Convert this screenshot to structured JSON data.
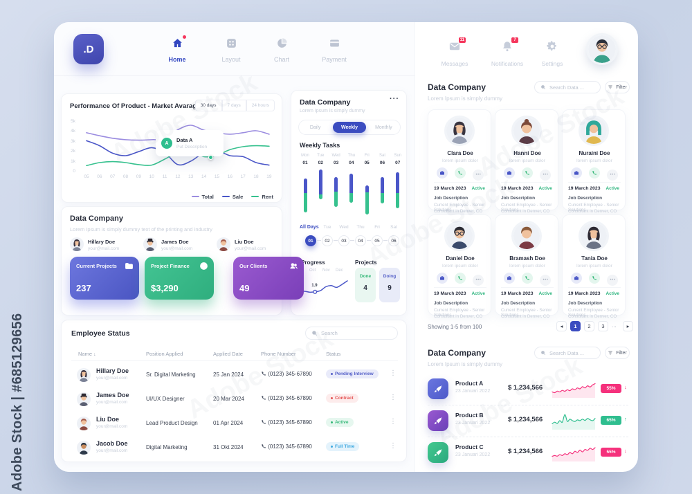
{
  "watermark": {
    "side_text": "Adobe Stock | #685129656",
    "diagonal_text": "Adobe Stock"
  },
  "header": {
    "logo_text": ".D",
    "nav": [
      {
        "label": "Home",
        "icon": "home-icon",
        "active": true,
        "notification_dot": true
      },
      {
        "label": "Layout",
        "icon": "layout-icon",
        "active": false
      },
      {
        "label": "Chart",
        "icon": "chart-icon",
        "active": false
      },
      {
        "label": "Payment",
        "icon": "payment-icon",
        "active": false
      }
    ]
  },
  "performance": {
    "title": "Performance Of Product - Market Avarage",
    "ranges": [
      "30 days",
      "7 days",
      "24 hours"
    ],
    "active_range": "30 days",
    "tooltip": {
      "badge": "A",
      "title": "Data A",
      "subtitle": "Put Description"
    }
  },
  "company": {
    "title": "Data Company",
    "subtitle": "Lorem Ipsum is simply dummy text of the printing and industry",
    "people": [
      {
        "name": "Hillary Doe",
        "email": "your@mail.com",
        "avatar": {
          "hair": "#3a3340",
          "cloth": "#7b8296",
          "style": "long"
        }
      },
      {
        "name": "James Doe",
        "email": "your@mail.com",
        "avatar": {
          "hair": "#2e2a33",
          "cloth": "#5a5f72",
          "style": "hat"
        }
      },
      {
        "name": "Liu Doe",
        "email": "your@mail.com",
        "avatar": {
          "hair": "#a65b4a",
          "cloth": "#8c4a42",
          "style": "short"
        }
      }
    ],
    "stats": [
      {
        "label": "Current Projects",
        "value": "237",
        "icon": "folder-icon",
        "g1": "#6d77de",
        "g2": "#4a55c2"
      },
      {
        "label": "Project Finance",
        "value": "$3,290",
        "icon": "dollar-icon",
        "g1": "#43c493",
        "g2": "#2fae7e"
      },
      {
        "label": "Our Clients",
        "value": "49",
        "icon": "clients-icon",
        "g1": "#9a5ad0",
        "g2": "#7a3fb8"
      }
    ]
  },
  "employees": {
    "title": "Employee Status",
    "search_placeholder": "Search",
    "columns": [
      "Name",
      "Position Applied",
      "Applied Date",
      "Phone Number",
      "Status"
    ],
    "rows": [
      {
        "name": "Hillary Doe",
        "email": "your@mail.com",
        "position": "Sr. Digital Marketing",
        "date": "25 Jan 2024",
        "phone": "(0123) 345-67890",
        "status": "Pending Interview",
        "status_fg": "#5560c8",
        "status_bg": "#e9ebfa",
        "avatar": {
          "hair": "#3a3340",
          "cloth": "#7b8296",
          "style": "long"
        }
      },
      {
        "name": "James Doe",
        "email": "your@mail.com",
        "position": "UI/UX Designer",
        "date": "20 Mar 2024",
        "phone": "(0123) 345-67890",
        "status": "Contract",
        "status_fg": "#e55656",
        "status_bg": "#fdecec",
        "avatar": {
          "hair": "#2e2a33",
          "cloth": "#5a5f72",
          "style": "hat"
        }
      },
      {
        "name": "Liu Doe",
        "email": "your@mail.com",
        "position": "Lead Product Design",
        "date": "01 Apr 2024",
        "phone": "(0123) 345-67890",
        "status": "Active",
        "status_fg": "#35b878",
        "status_bg": "#e6f7ef",
        "avatar": {
          "hair": "#a65b4a",
          "cloth": "#8c4a42",
          "style": "short"
        }
      },
      {
        "name": "Jacob Doe",
        "email": "your@mail.com",
        "position": "Digital Marketing",
        "date": "31 Okt 2024",
        "phone": "(0123) 345-67890",
        "status": "Full Time",
        "status_fg": "#3fa9e0",
        "status_bg": "#e4f3fc",
        "avatar": {
          "hair": "#23303f",
          "cloth": "#2e3a4a",
          "style": "short",
          "skin": "#c98d5f"
        }
      }
    ]
  },
  "middle": {
    "title": "Data Company",
    "menu_label": "···",
    "subtitle": "Lorem Ipsum is simply dummy",
    "tabs": [
      {
        "label": "Daily",
        "active": false
      },
      {
        "label": "Weekly",
        "active": true
      },
      {
        "label": "Monthly",
        "active": false
      }
    ],
    "weekly_title": "Weekly Tasks",
    "day_nav": {
      "label": "All Days",
      "day_names": [
        "Tue",
        "Wed",
        "Thu",
        "Fri",
        "Sat"
      ],
      "buttons": [
        "01",
        "02",
        "03",
        "04",
        "05",
        "06"
      ],
      "active": "01"
    },
    "progress_label": "Progress",
    "projects": {
      "label": "Projects",
      "items": [
        {
          "label": "Done",
          "value": "4",
          "fg": "#35b878",
          "bg": "#e9f7f1"
        },
        {
          "label": "Doing",
          "value": "9",
          "fg": "#5560c8",
          "bg": "#e8ebf8"
        }
      ]
    }
  },
  "right": {
    "topnav": [
      {
        "label": "Messages",
        "icon": "mail-icon",
        "badge": "11"
      },
      {
        "label": "Notifications",
        "icon": "bell-icon",
        "badge": "7"
      },
      {
        "label": "Settings",
        "icon": "gear-icon",
        "badge": ""
      }
    ],
    "profile_avatar": {
      "hair": "#2b2f3a",
      "cloth": "#3aa08a",
      "style": "short",
      "glasses": true
    },
    "team": {
      "title": "Data Company",
      "subtitle": "Lorem Ipsum is simply dummy",
      "search_placeholder": "Search Data ...",
      "filter_label": "Filter",
      "cards": [
        {
          "name": "Clara Doe",
          "tagline": "lorem ipsum dolor",
          "date": "19 March 2023",
          "status": "Active",
          "job_label": "Job Description",
          "job_line1": "Current Employee - Senior Solutions",
          "job_line2": "Consultant in Denver, CO",
          "avatar": {
            "hair": "#3a3540",
            "cloth": "#9aa2b5",
            "style": "long"
          }
        },
        {
          "name": "Hanni Doe",
          "tagline": "lorem ipsum dolor",
          "date": "19 March 2023",
          "status": "Active",
          "job_label": "Job Description",
          "job_line1": "Current Employee - Senior Solutions",
          "job_line2": "Consultant in Denver, CO",
          "avatar": {
            "hair": "#7c4a3a",
            "cloth": "#5a3a44",
            "style": "bun"
          }
        },
        {
          "name": "Nuraini Doe",
          "tagline": "lorem ipsum dolor",
          "date": "19 March 2023",
          "status": "Active",
          "job_label": "Job Description",
          "job_line1": "Current Employee - Senior Solutions",
          "job_line2": "Consultant in Denver, CO",
          "avatar": {
            "hair": "#2fa89a",
            "cloth": "#e0b84f",
            "style": "hijab"
          }
        },
        {
          "name": "Daniel Doe",
          "tagline": "lorem ipsum dolor",
          "date": "19 March 2023",
          "status": "Active",
          "job_label": "Job Description",
          "job_line1": "Current Employee - Senior Solutions",
          "job_line2": "Consultant in Denver, CO",
          "avatar": {
            "hair": "#2b2b33",
            "cloth": "#3a4a6b",
            "style": "short",
            "glasses": true
          }
        },
        {
          "name": "Bramash Doe",
          "tagline": "lorem ipsum dolor",
          "date": "19 March 2023",
          "status": "Active",
          "job_label": "Job Description",
          "job_line1": "Current Employee - Senior Solutions",
          "job_line2": "Consultant in Denver, CO",
          "avatar": {
            "hair": "#8a5a3a",
            "cloth": "#7b3a44",
            "style": "short"
          }
        },
        {
          "name": "Tania Doe",
          "tagline": "lorem ipsum dolor",
          "date": "19 March 2023",
          "status": "Active",
          "job_label": "Job Description",
          "job_line1": "Current Employee - Senior Solutions",
          "job_line2": "Consultant in Denver, CO",
          "avatar": {
            "hair": "#2e2a33",
            "cloth": "#6b7386",
            "style": "long"
          }
        }
      ],
      "pagination": {
        "summary": "Showing 1-5 from 100",
        "prev": "◂",
        "pages": [
          "1",
          "2",
          "3"
        ],
        "active": "1",
        "ellipsis": "...",
        "next": "▸"
      }
    },
    "products": {
      "title": "Data Company",
      "subtitle": "Lorem Ipsum is simply dummy",
      "search_placeholder": "Search Data ...",
      "filter_label": "Filter",
      "rows": [
        {
          "name": "Product A",
          "date": "23 Januari 2022",
          "price": "$ 1,234,566",
          "change": "55%",
          "trend": "down",
          "accent": "#f5317c",
          "g1": "#6a76e0",
          "g2": "#4d59c8"
        },
        {
          "name": "Product B",
          "date": "23 Januari 2022",
          "price": "$ 1,234,566",
          "change": "65%",
          "trend": "up",
          "accent": "#2fbe8f",
          "g1": "#9a5ad0",
          "g2": "#6a3fb8"
        },
        {
          "name": "Product C",
          "date": "23 Januari 2022",
          "price": "$ 1,234,566",
          "change": "55%",
          "trend": "down",
          "accent": "#f5317c",
          "g1": "#43c98f",
          "g2": "#2aa87e"
        }
      ]
    }
  },
  "chart_data": [
    {
      "id": "performance",
      "type": "line",
      "title": "Performance Of Product - Market Avarage",
      "x": [
        "05",
        "06",
        "07",
        "08",
        "09",
        "10",
        "11",
        "12",
        "13",
        "14",
        "15",
        "16",
        "17",
        "18",
        "19"
      ],
      "y_ticks": [
        "5k",
        "4k",
        "3k",
        "2k",
        "1k",
        "0"
      ],
      "ylim": [
        0,
        5
      ],
      "series": [
        {
          "name": "Total",
          "color": "#9b8ce0",
          "values": [
            3.9,
            3.6,
            3.35,
            3.2,
            3.15,
            3.2,
            3.3,
            4.2,
            4.65,
            4.15,
            3.9,
            3.75,
            3.9,
            4.1,
            3.75
          ]
        },
        {
          "name": "Sale",
          "color": "#4a56c8",
          "values": [
            3.1,
            2.6,
            1.85,
            1.6,
            2.0,
            2.4,
            1.9,
            0.7,
            1.05,
            1.9,
            2.1,
            1.6,
            1.5,
            0.9,
            0.65
          ]
        },
        {
          "name": "Rent",
          "color": "#36c18e",
          "values": [
            0.6,
            0.9,
            1.0,
            0.9,
            0.7,
            0.65,
            1.25,
            1.95,
            2.1,
            1.5,
            1.65,
            2.2,
            2.5,
            2.6,
            2.55
          ]
        }
      ],
      "tooltip_point": {
        "series": "Rent",
        "x_index": 9.5,
        "value": 1.45
      },
      "legend_position": "bottom-right",
      "grid": false
    },
    {
      "id": "weekly_tasks",
      "type": "stacked-bar",
      "days": [
        [
          "Mon",
          "01"
        ],
        [
          "Tue",
          "02"
        ],
        [
          "Wed",
          "03"
        ],
        [
          "Thu",
          "04"
        ],
        [
          "Fri",
          "05"
        ],
        [
          "Sat",
          "06"
        ],
        [
          "Sun",
          "07"
        ]
      ],
      "bars": [
        [
          20,
          32,
          40
        ],
        [
          2,
          52,
          10
        ],
        [
          17,
          32,
          32
        ],
        [
          10,
          42,
          20
        ],
        [
          35,
          15,
          47
        ],
        [
          17,
          35,
          22
        ],
        [
          7,
          45,
          32
        ]
      ],
      "colors": {
        "top": "#4a56c8",
        "bottom": "#36c18e"
      },
      "note": "each bar = [top_offset_pct, indigo_segment_pct, green_segment_pct] of plot height"
    },
    {
      "id": "progress",
      "type": "line",
      "x": [
        "Oct",
        "Nov",
        "Dec"
      ],
      "values": [
        2.2,
        2.0,
        2.1,
        1.8,
        1.9,
        2.3,
        3.6,
        4.0,
        3.4,
        4.4,
        5.6
      ],
      "marker": {
        "index": 4,
        "label": "1.9"
      },
      "color": "#4a56c8"
    },
    {
      "id": "product_sparklines",
      "type": "line",
      "series": [
        {
          "name": "Product A",
          "color": "#f5317c",
          "values": [
            3,
            2.5,
            3.5,
            3,
            4,
            3.4,
            4.4,
            3.8,
            5,
            4.4,
            5.6,
            5,
            6.4,
            5.6,
            7,
            6.2,
            7.6,
            8.4
          ]
        },
        {
          "name": "Product B",
          "color": "#2fbe8f",
          "values": [
            3,
            4,
            3.2,
            5,
            4,
            9,
            4.5,
            6,
            5,
            4.5,
            5.5,
            5,
            6,
            5.2,
            6.4,
            5.6,
            5,
            6.5
          ]
        },
        {
          "name": "Product C",
          "color": "#f5317c",
          "values": [
            2.5,
            3,
            2.6,
            3.6,
            3,
            4.2,
            3.6,
            5,
            4.2,
            5.8,
            5,
            6.6,
            5.4,
            7,
            6.4,
            7.8,
            7,
            8.2
          ]
        }
      ]
    }
  ]
}
